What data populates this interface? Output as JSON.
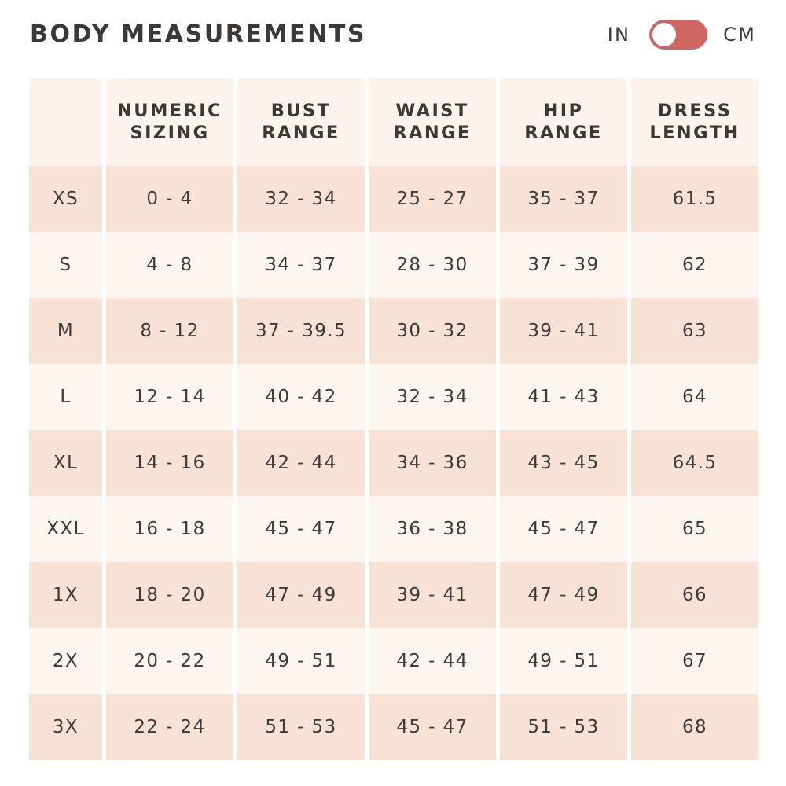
{
  "title": "BODY MEASUREMENTS",
  "unit_toggle": {
    "left_label": "IN",
    "right_label": "CM",
    "selected": "IN",
    "track_color": "#cf6664"
  },
  "table": {
    "headers": [
      [],
      [
        "NUMERIC",
        "SIZING"
      ],
      [
        "BUST",
        "RANGE"
      ],
      [
        "WAIST",
        "RANGE"
      ],
      [
        "HIP",
        "RANGE"
      ],
      [
        "DRESS",
        "LENGTH"
      ]
    ],
    "rows": [
      [
        "XS",
        "0 - 4",
        "32 - 34",
        "25 - 27",
        "35 - 37",
        "61.5"
      ],
      [
        "S",
        "4 - 8",
        "34 - 37",
        "28 - 30",
        "37 - 39",
        "62"
      ],
      [
        "M",
        "8 - 12",
        "37 - 39.5",
        "30 - 32",
        "39 - 41",
        "63"
      ],
      [
        "L",
        "12 - 14",
        "40 - 42",
        "32 - 34",
        "41 - 43",
        "64"
      ],
      [
        "XL",
        "14 - 16",
        "42 - 44",
        "34 - 36",
        "43 - 45",
        "64.5"
      ],
      [
        "XXL",
        "16 - 18",
        "45 - 47",
        "36 - 38",
        "45 - 47",
        "65"
      ],
      [
        "1X",
        "18 - 20",
        "47 - 49",
        "39 - 41",
        "47 - 49",
        "66"
      ],
      [
        "2X",
        "20 - 22",
        "49 - 51",
        "42 - 44",
        "49 - 51",
        "67"
      ],
      [
        "3X",
        "22 - 24",
        "51 - 53",
        "45 - 47",
        "51 - 53",
        "68"
      ]
    ],
    "colors": {
      "header_bg": "#fcf3ec",
      "row_dark": "#f7e2d5",
      "row_light": "#fdf5f0"
    }
  }
}
